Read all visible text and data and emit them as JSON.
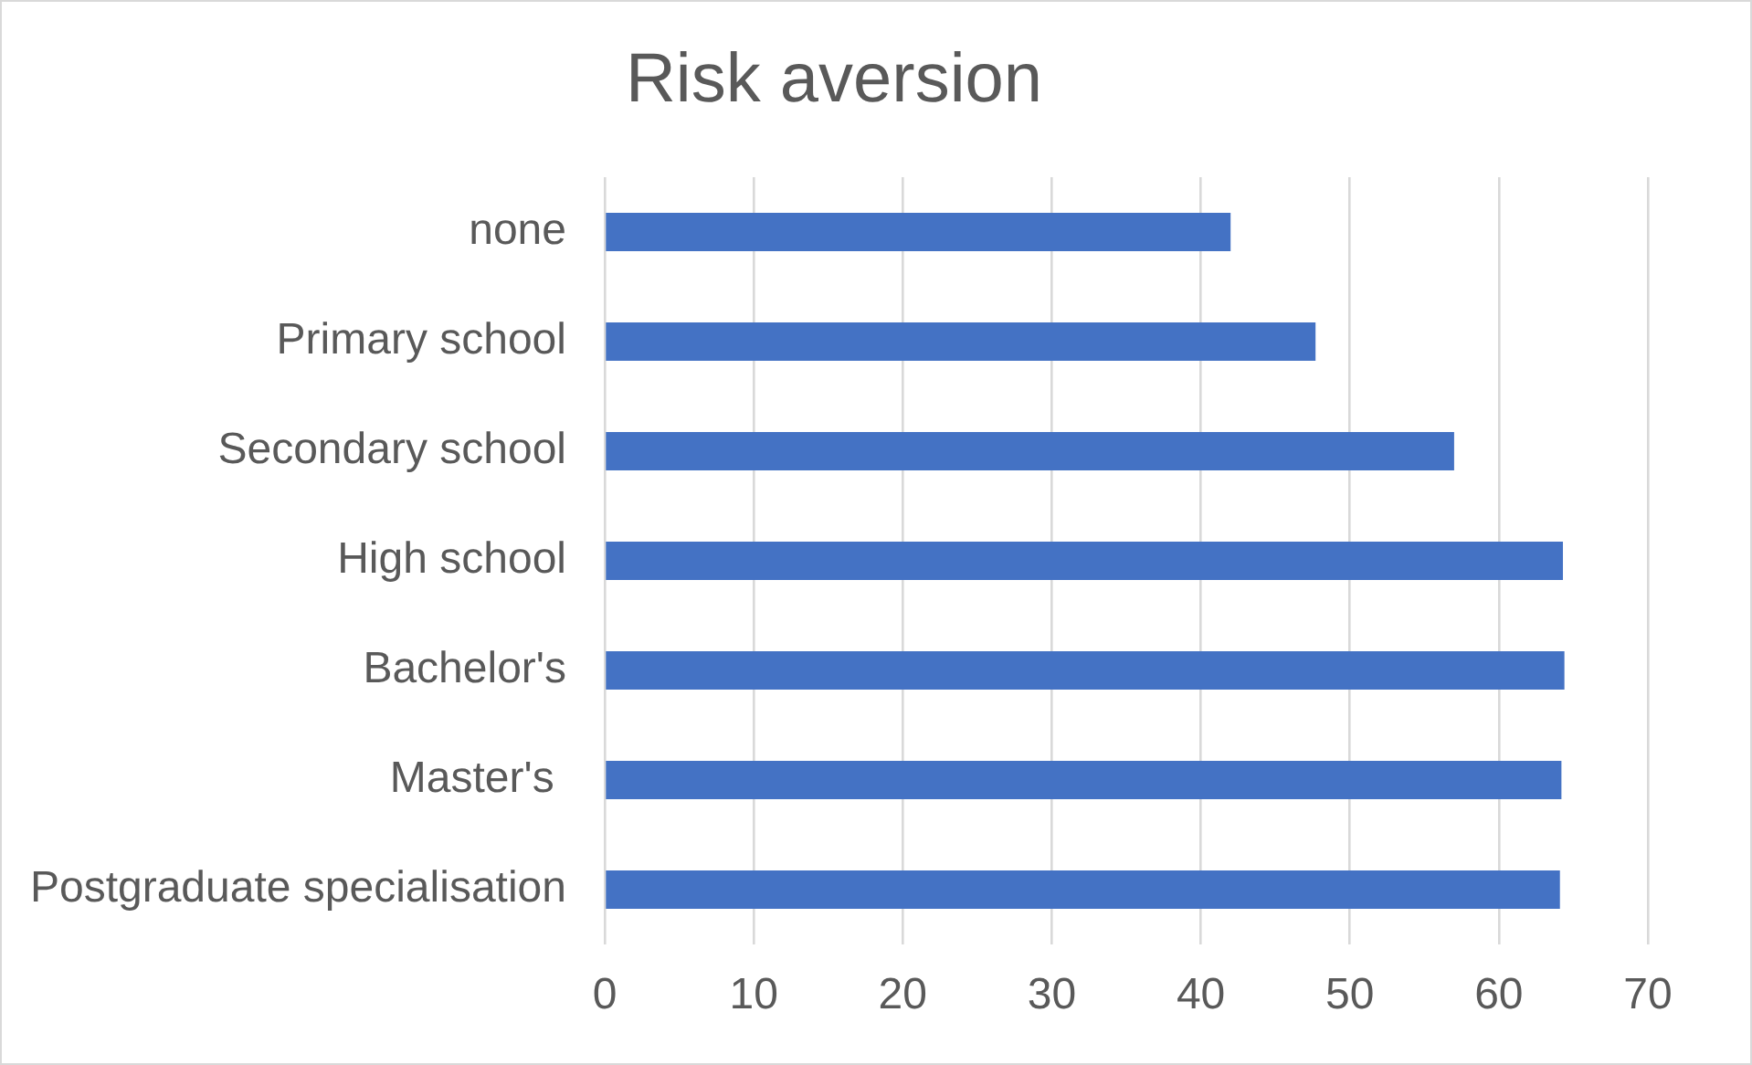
{
  "chart_data": {
    "type": "bar",
    "orientation": "horizontal",
    "title": "Risk aversion",
    "categories": [
      "none",
      "Primary school",
      "Secondary school",
      "High school",
      "Bachelor's",
      "Master's ",
      "Postgraduate specialisation"
    ],
    "values": [
      42.0,
      47.7,
      57.0,
      64.3,
      64.4,
      64.2,
      64.1
    ],
    "color": "#4472c4",
    "xlim": [
      0,
      70
    ],
    "xticks": [
      0,
      10,
      20,
      30,
      40,
      50,
      60,
      70
    ],
    "grid": "x"
  }
}
